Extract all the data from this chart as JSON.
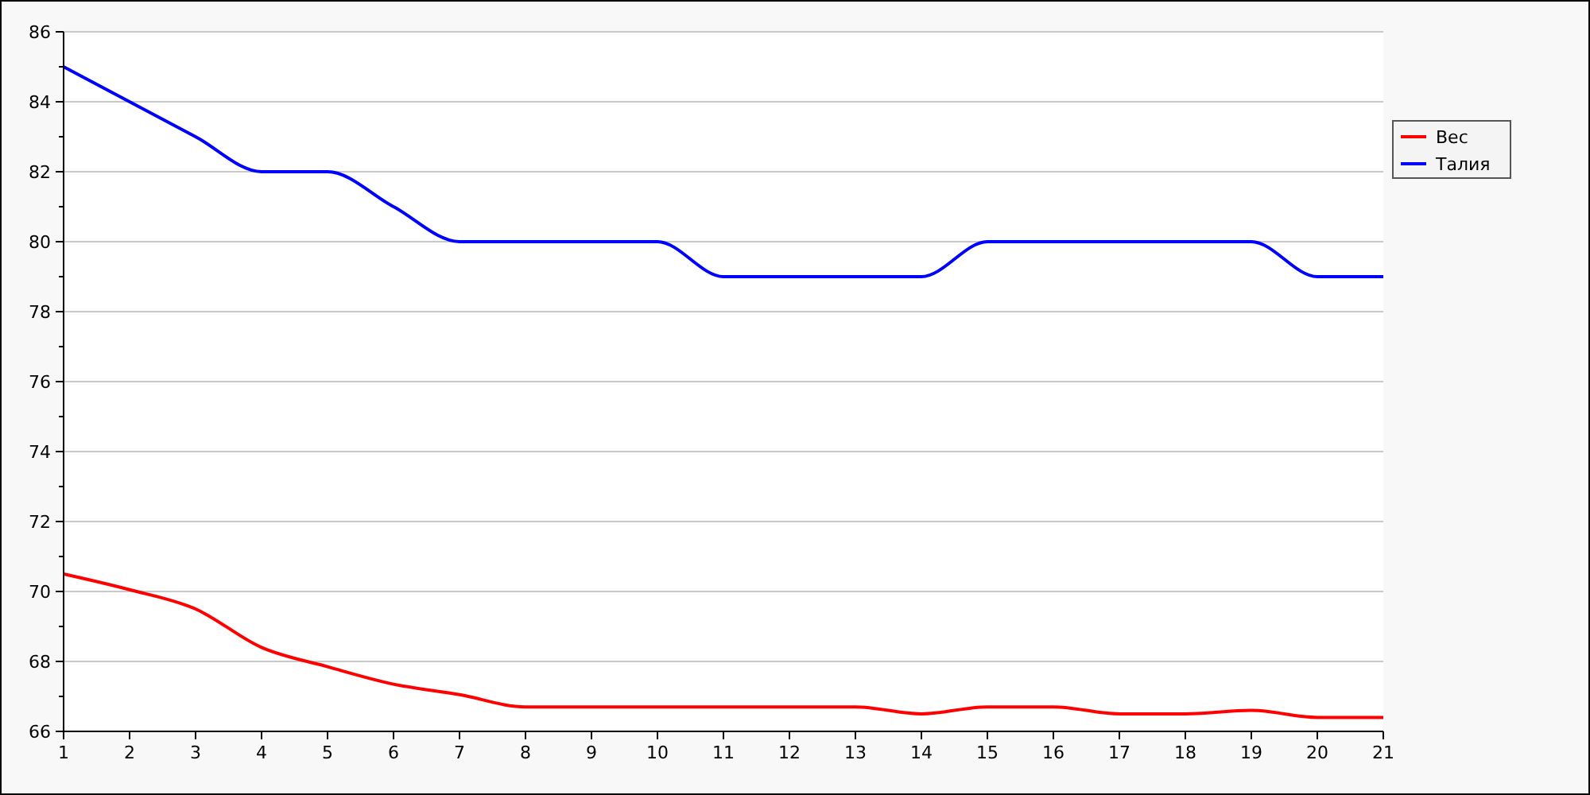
{
  "chart_data": {
    "type": "line",
    "x": [
      1,
      2,
      3,
      4,
      5,
      6,
      7,
      8,
      9,
      10,
      11,
      12,
      13,
      14,
      15,
      16,
      17,
      18,
      19,
      20,
      21
    ],
    "series": [
      {
        "name": "Вес",
        "color": "#ff0000",
        "values": [
          70.5,
          70.05,
          69.5,
          68.4,
          67.85,
          67.35,
          67.05,
          66.7,
          66.7,
          66.7,
          66.7,
          66.7,
          66.7,
          66.5,
          66.7,
          66.7,
          66.5,
          66.5,
          66.6,
          66.4,
          66.4
        ]
      },
      {
        "name": "Талия",
        "color": "#0000ff",
        "values": [
          85,
          84,
          83,
          82,
          82,
          81,
          80,
          80,
          80,
          80,
          79,
          79,
          79,
          79,
          80,
          80,
          80,
          80,
          80,
          79,
          79
        ]
      }
    ],
    "xlim": [
      1,
      21
    ],
    "xticks": [
      1,
      2,
      3,
      4,
      5,
      6,
      7,
      8,
      9,
      10,
      11,
      12,
      13,
      14,
      15,
      16,
      17,
      18,
      19,
      20,
      21
    ],
    "ylim": [
      66,
      86
    ],
    "yticks": [
      66,
      68,
      70,
      72,
      74,
      76,
      78,
      80,
      82,
      84,
      86
    ],
    "grid": "y",
    "legend": "right",
    "line_style": "solid",
    "marker": "none"
  }
}
